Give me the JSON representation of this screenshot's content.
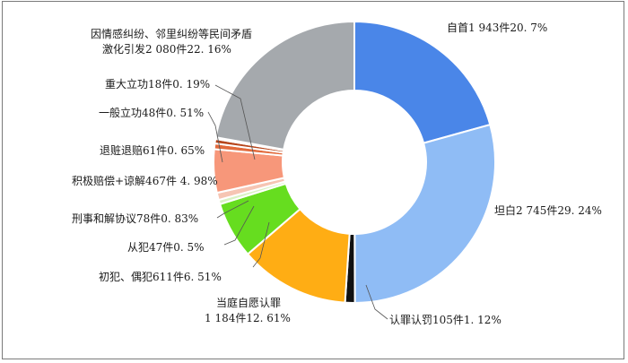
{
  "chart_data": {
    "type": "pie",
    "subtype": "donut",
    "start_angle_deg": 0,
    "direction": "clockwise",
    "slices": [
      {
        "category": "自首",
        "count": "1 943件",
        "percent": "20. 7%",
        "value": 20.7,
        "color": "#4a86e8"
      },
      {
        "category": "坦白",
        "count": "2 745件",
        "percent": "29. 24%",
        "value": 29.24,
        "color": "#8fbcf5"
      },
      {
        "category": "认罪认罚",
        "count": "105件",
        "percent": "1. 12%",
        "value": 1.12,
        "color": "#111111"
      },
      {
        "category": "当庭自愿认罪",
        "count": "1 184件",
        "percent": "12. 61%",
        "value": 12.61,
        "color": "#ffad14"
      },
      {
        "category": "初犯、偶犯",
        "count": "611件",
        "percent": "6. 51%",
        "value": 6.51,
        "color": "#66dd1f"
      },
      {
        "category": "从犯",
        "count": "47件",
        "percent": "0. 5%",
        "value": 0.5,
        "color": "#d9f2c4"
      },
      {
        "category": "刑事和解协议",
        "count": "78件",
        "percent": "0. 83%",
        "value": 0.83,
        "color": "#f6c5b3"
      },
      {
        "category": "积极赔偿+谅解",
        "count": "467件",
        "percent": " 4. 98%",
        "value": 4.98,
        "color": "#f7977a"
      },
      {
        "category": "退赃退赔",
        "count": "61件",
        "percent": "0. 65%",
        "value": 0.65,
        "color": "#e26a3c"
      },
      {
        "category": "一般立功",
        "count": "48件",
        "percent": "0. 51%",
        "value": 0.51,
        "color": "#b7461c"
      },
      {
        "category": "重大立功",
        "count": "18件",
        "percent": "0. 19%",
        "value": 0.19,
        "color": "#f2c9b3"
      },
      {
        "category": "因情感纠纷、邻里纠纷等民间矛盾激化引发",
        "count": "2 080件",
        "percent": "22. 16%",
        "value": 22.16,
        "color": "#a5a9ad"
      }
    ]
  },
  "labels": {
    "zishou": "自首1 943件20. 7%",
    "tanbai": "坦白2 745件29. 24%",
    "renzui": "认罪认罚105件1. 12%",
    "dangting_1": "当庭自愿认罪",
    "dangting_2": "1 184件12. 61%",
    "chufan": "初犯、偶犯611件6. 51%",
    "congfan": "从犯47件0. 5%",
    "hejie": "刑事和解协议78件0. 83%",
    "peichang": "积极赔偿+谅解467件  4. 98%",
    "tuizang": "退赃退赔61件0. 65%",
    "yiban": "一般立功48件0. 51%",
    "zhongda": "重大立功18件0. 19%",
    "minjian_1": "因情感纠纷、邻里纠纷等民间矛盾",
    "minjian_2": "激化引发2 080件22. 16%"
  }
}
